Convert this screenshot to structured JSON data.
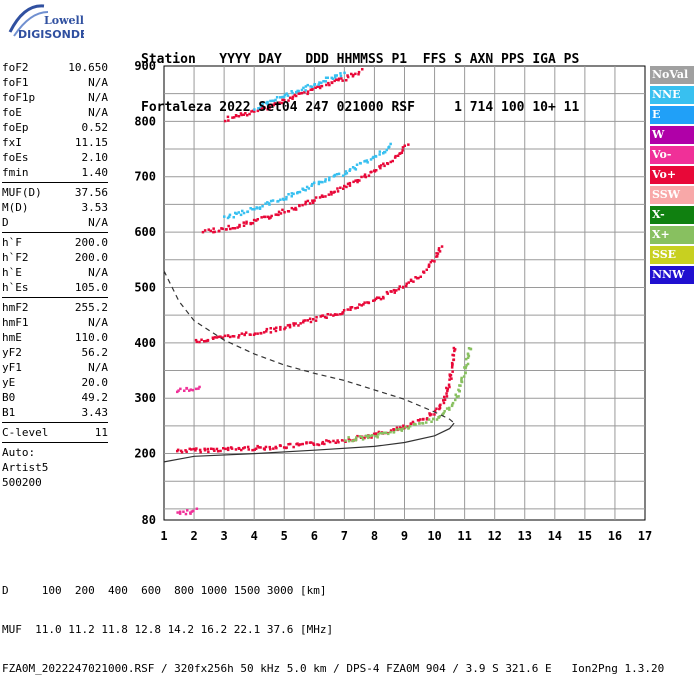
{
  "logo": {
    "line1": "Lowell",
    "line2": "DIGISONDE"
  },
  "header": {
    "line1": "Station   YYYY DAY   DDD HHMMSS P1  FFS S AXN PPS IGA PS",
    "line2": "Fortaleza 2022 Set04 247 021000 RSF     1 714 100 10+ 11"
  },
  "params": [
    [
      {
        "name": "foF2",
        "value": "10.650"
      },
      {
        "name": "foF1",
        "value": "N/A"
      },
      {
        "name": "foF1p",
        "value": "N/A"
      },
      {
        "name": "foE",
        "value": "N/A"
      },
      {
        "name": "foEp",
        "value": "0.52"
      },
      {
        "name": "fxI",
        "value": "11.15"
      },
      {
        "name": "foEs",
        "value": "2.10"
      },
      {
        "name": "fmin",
        "value": "1.40"
      }
    ],
    [
      {
        "name": "MUF(D)",
        "value": "37.56"
      },
      {
        "name": "M(D)",
        "value": "3.53"
      },
      {
        "name": "D",
        "value": "N/A"
      }
    ],
    [
      {
        "name": "h`F",
        "value": "200.0"
      },
      {
        "name": "h`F2",
        "value": "200.0"
      },
      {
        "name": "h`E",
        "value": "N/A"
      },
      {
        "name": "h`Es",
        "value": "105.0"
      }
    ],
    [
      {
        "name": "hmF2",
        "value": "255.2"
      },
      {
        "name": "hmF1",
        "value": "N/A"
      },
      {
        "name": "hmE",
        "value": "110.0"
      },
      {
        "name": "yF2",
        "value": "56.2"
      },
      {
        "name": "yF1",
        "value": "N/A"
      },
      {
        "name": "yE",
        "value": "20.0"
      },
      {
        "name": "B0",
        "value": "49.2"
      },
      {
        "name": "B1",
        "value": "3.43"
      }
    ],
    [
      {
        "name": "C-level",
        "value": "11"
      }
    ]
  ],
  "auto": {
    "line1": "Auto:",
    "line2": "Artist5",
    "line3": "500200"
  },
  "legend": [
    {
      "label": "NoVal",
      "color": "#a0a0a0"
    },
    {
      "label": "NNE",
      "color": "#38c0f0"
    },
    {
      "label": "E",
      "color": "#20a0f8"
    },
    {
      "label": "W",
      "color": "#b000a8"
    },
    {
      "label": "Vo-",
      "color": "#f03098"
    },
    {
      "label": "Vo+",
      "color": "#e80838"
    },
    {
      "label": "SSW",
      "color": "#f8a8a8"
    },
    {
      "label": "X-",
      "color": "#108010"
    },
    {
      "label": "X+",
      "color": "#88c060"
    },
    {
      "label": "SSE",
      "color": "#c8d020"
    },
    {
      "label": "NNW",
      "color": "#2010d0"
    }
  ],
  "footer": {
    "line1": "D     100  200  400  600  800 1000 1500 3000 [km]",
    "line2": "MUF  11.0 11.2 11.8 12.8 14.2 16.2 22.1 37.6 [MHz]",
    "line3": "FZA0M_2022247021000.RSF / 320fx256h 50 kHz 5.0 km / DPS-4 FZA0M 904 / 3.9 S 321.6 E   Ion2Png 1.3.20"
  },
  "chart_data": {
    "type": "scatter",
    "x_ticks": [
      1,
      2,
      3,
      4,
      5,
      6,
      7,
      8,
      9,
      10,
      11,
      12,
      13,
      14,
      15,
      16,
      17
    ],
    "y_ticks": [
      80,
      200,
      300,
      400,
      500,
      600,
      700,
      800,
      900
    ],
    "xlim": [
      1,
      17
    ],
    "ylim": [
      80,
      900
    ],
    "grid": true,
    "traces": [
      {
        "name": "F2 O-trace",
        "color": "#e80838",
        "points": [
          [
            1.4,
            207
          ],
          [
            2,
            208
          ],
          [
            3,
            210
          ],
          [
            4,
            212
          ],
          [
            5,
            215
          ],
          [
            6,
            220
          ],
          [
            7,
            227
          ],
          [
            8,
            236
          ],
          [
            9,
            250
          ],
          [
            9.5,
            262
          ],
          [
            10,
            278
          ],
          [
            10.3,
            300
          ],
          [
            10.5,
            340
          ],
          [
            10.65,
            395
          ]
        ]
      },
      {
        "name": "F2 X-trace",
        "color": "#88c060",
        "points": [
          [
            7,
            227
          ],
          [
            8,
            234
          ],
          [
            9,
            248
          ],
          [
            10,
            265
          ],
          [
            10.5,
            285
          ],
          [
            10.8,
            315
          ],
          [
            11.0,
            360
          ],
          [
            11.15,
            398
          ]
        ]
      },
      {
        "name": "2F echo",
        "color": "#e80838",
        "points": [
          [
            2,
            405
          ],
          [
            3,
            412
          ],
          [
            4,
            420
          ],
          [
            5,
            430
          ],
          [
            6,
            445
          ],
          [
            7,
            460
          ],
          [
            8,
            480
          ],
          [
            9,
            505
          ],
          [
            9.5,
            525
          ],
          [
            10,
            555
          ],
          [
            10.2,
            580
          ]
        ]
      },
      {
        "name": "3F echo",
        "color": "#e80838",
        "points": [
          [
            2.3,
            603
          ],
          [
            3,
            608
          ],
          [
            4,
            622
          ],
          [
            5,
            640
          ],
          [
            6,
            660
          ],
          [
            7,
            685
          ],
          [
            8,
            712
          ],
          [
            8.6,
            735
          ],
          [
            9.1,
            760
          ]
        ]
      },
      {
        "name": "3F echo upper",
        "color": "#38c0f0",
        "points": [
          [
            3,
            628
          ],
          [
            4,
            645
          ],
          [
            5,
            665
          ],
          [
            6,
            688
          ],
          [
            7,
            710
          ],
          [
            8,
            738
          ],
          [
            8.6,
            760
          ]
        ]
      },
      {
        "name": "4F echo",
        "color": "#e80838",
        "points": [
          [
            3,
            805
          ],
          [
            4,
            820
          ],
          [
            5,
            840
          ],
          [
            6,
            862
          ],
          [
            7,
            880
          ],
          [
            7.6,
            895
          ]
        ]
      },
      {
        "name": "4F echo upper",
        "color": "#38c0f0",
        "points": [
          [
            4,
            825
          ],
          [
            5,
            848
          ],
          [
            6,
            870
          ],
          [
            7,
            890
          ]
        ]
      },
      {
        "name": "Es",
        "color": "#f03098",
        "points": [
          [
            1.4,
            95
          ],
          [
            1.8,
            97
          ],
          [
            2.1,
            100
          ]
        ]
      },
      {
        "name": "Es multiple",
        "color": "#f03098",
        "points": [
          [
            1.4,
            315
          ],
          [
            1.8,
            318
          ],
          [
            2.2,
            320
          ]
        ]
      }
    ],
    "profile": {
      "dashed": [
        [
          1.0,
          530
        ],
        [
          1.5,
          475
        ],
        [
          2,
          440
        ],
        [
          3,
          405
        ],
        [
          4,
          380
        ],
        [
          5,
          360
        ],
        [
          6,
          345
        ],
        [
          7,
          332
        ],
        [
          8,
          315
        ],
        [
          9,
          298
        ],
        [
          10,
          275
        ],
        [
          10.5,
          262
        ],
        [
          10.65,
          255
        ]
      ],
      "solid": [
        [
          1.0,
          185
        ],
        [
          2,
          195
        ],
        [
          4,
          200
        ],
        [
          6,
          206
        ],
        [
          8,
          213
        ],
        [
          9,
          220
        ],
        [
          10,
          232
        ],
        [
          10.5,
          245
        ],
        [
          10.65,
          255
        ]
      ]
    }
  }
}
